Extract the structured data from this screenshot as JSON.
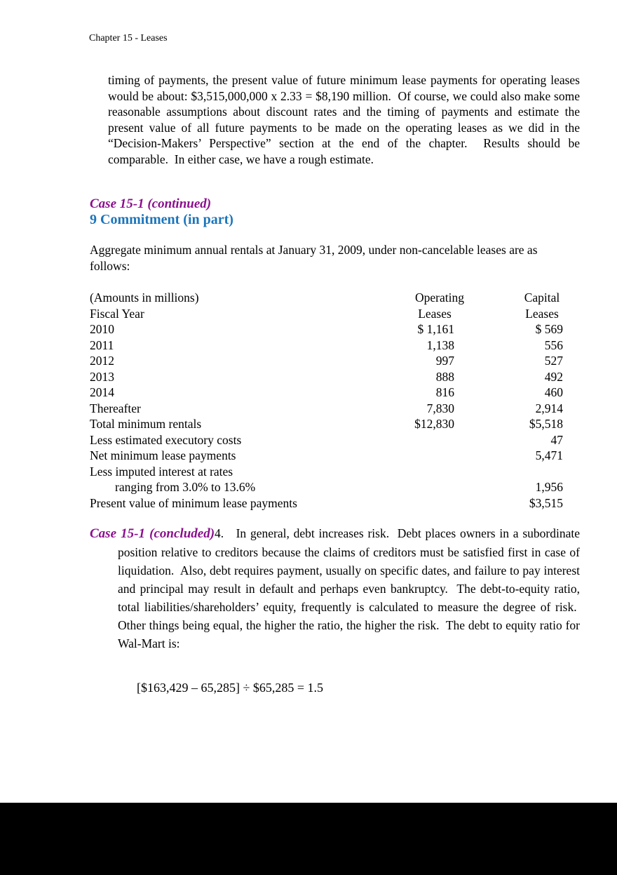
{
  "doc": {
    "header": "Chapter 15 - Leases",
    "intro": "timing of payments, the present value of future minimum lease payments for operating leases would be about: $3,515,000,000 x 2.33 = $8,190 million.  Of course, we could also make some reasonable assumptions about discount rates and the timing of payments and estimate the present value of all future payments to be made on the operating leases as we did in the “Decision-Makers’ Perspective” section at the end of the chapter.  Results should be comparable.  In either case, we have a rough estimate.",
    "case_continued": {
      "heading": "Case 15-1 (continued)",
      "subheading": "9 Commitment (in part)"
    },
    "aggregate": "Aggregate minimum annual rentals at January 31, 2009, under non-cancelable leases are as follows:",
    "lease_table": {
      "note": "(Amounts in millions)",
      "fiscal_year_label": "Fiscal Year",
      "operating_header": "Operating",
      "capital_header": "Capital",
      "operating_subheader": "Leases",
      "capital_subheader": "Leases",
      "rows": [
        {
          "label": "2010",
          "operating": "$ 1,161",
          "capital": "$ 569"
        },
        {
          "label": "2011",
          "operating": "1,138",
          "capital": "556"
        },
        {
          "label": "2012",
          "operating": "997",
          "capital": "527"
        },
        {
          "label": "2013",
          "operating": "888",
          "capital": "492"
        },
        {
          "label": "2014",
          "operating": "816",
          "capital": "460"
        },
        {
          "label": "Thereafter",
          "operating": "7,830",
          "capital": "2,914"
        },
        {
          "label": "Total minimum rentals",
          "operating": "$12,830",
          "capital": "$5,518"
        },
        {
          "label": "Less estimated executory costs",
          "operating": "",
          "capital": "47"
        },
        {
          "label": "Net minimum lease payments",
          "operating": "",
          "capital": "5,471"
        },
        {
          "label": "Less imputed interest at rates",
          "operating": "",
          "capital": ""
        },
        {
          "label": "ranging from 3.0% to 13.6%",
          "operating": "",
          "capital": "1,956"
        },
        {
          "label": "Present value of minimum lease payments",
          "operating": "",
          "capital": "$3,515"
        }
      ]
    },
    "case_concluded": {
      "heading": "Case 15-1 (concluded)",
      "item_number": "4.   ",
      "text": "In general, debt increases risk.  Debt places owners in a subordinate position relative to creditors because the claims of creditors must be satisfied first in case of liquidation.  Also, debt requires payment, usually on specific dates, and failure to pay interest and principal may result in default and perhaps even bankruptcy.  The debt-to-equity ratio, total liabilities/shareholders’ equity, frequently is calculated to measure the degree of risk.  Other things being equal, the higher the ratio, the higher the risk.  The debt to equity ratio for Wal-Mart is:"
    },
    "formula": "[$163,429 – 65,285] ÷ $65,285 = 1.5"
  },
  "colors": {
    "case_heading_purple": "#8B0E8E",
    "commitment_blue": "#1B75BC",
    "text": "#000000",
    "background": "#FFFFFF",
    "bottom_band": "#000000"
  }
}
